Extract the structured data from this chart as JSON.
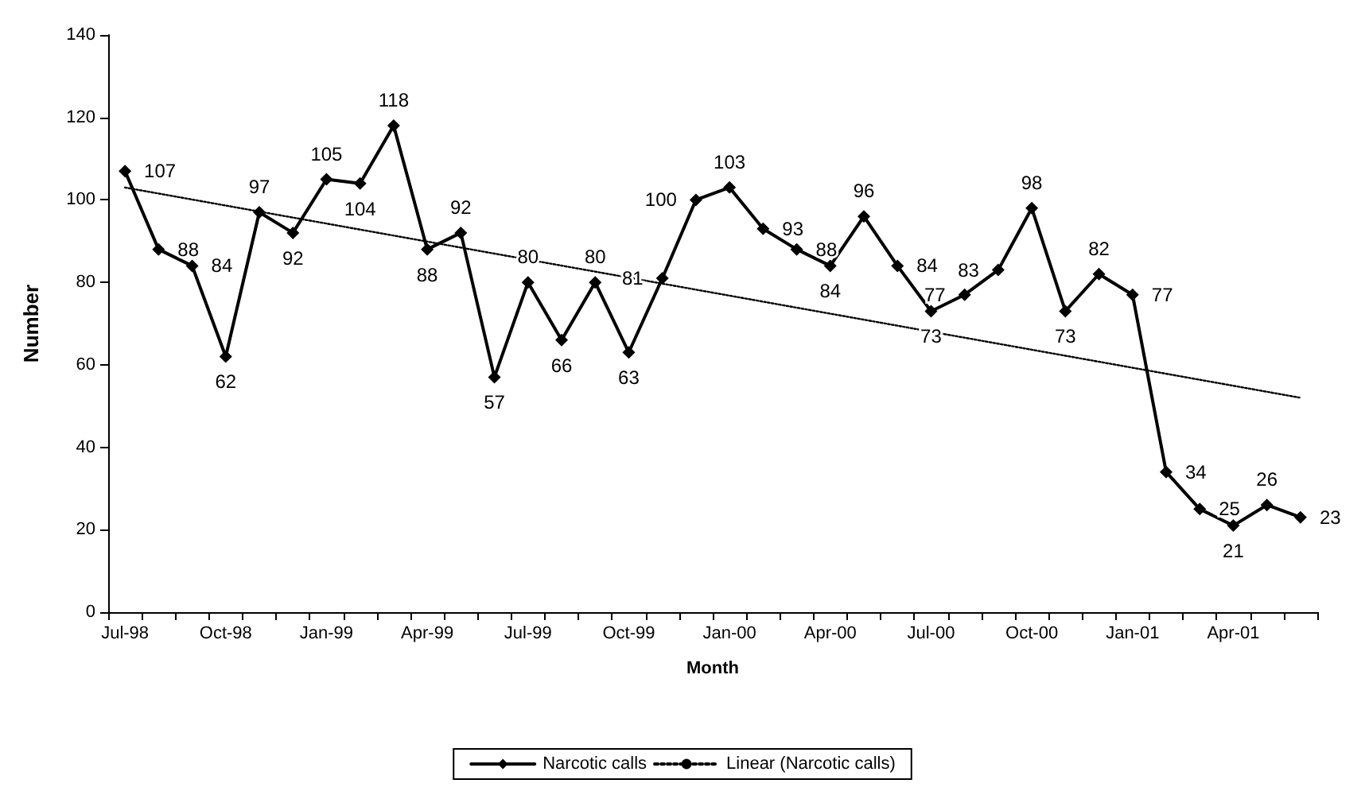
{
  "chart_data": {
    "type": "line",
    "xlabel": "Month",
    "ylabel": "Number",
    "categories": [
      "Jul-98",
      null,
      null,
      "Oct-98",
      null,
      null,
      "Jan-99",
      null,
      null,
      "Apr-99",
      null,
      null,
      "Jul-99",
      null,
      null,
      "Oct-99",
      null,
      null,
      "Jan-00",
      null,
      null,
      "Apr-00",
      null,
      null,
      "Jul-00",
      null,
      null,
      "Oct-00",
      null,
      null,
      "Jan-01",
      null,
      null,
      "Apr-01",
      null,
      null
    ],
    "series": [
      {
        "name": "Narcotic calls",
        "color": "#000000",
        "marker": "diamond",
        "line_style": "solid",
        "data_labels": true,
        "values": [
          107,
          88,
          84,
          62,
          97,
          92,
          105,
          104,
          118,
          88,
          92,
          57,
          80,
          66,
          80,
          63,
          81,
          100,
          103,
          93,
          88,
          84,
          96,
          84,
          73,
          77,
          83,
          98,
          73,
          82,
          77,
          34,
          25,
          21,
          26,
          23
        ]
      },
      {
        "name": "Linear (Narcotic calls)",
        "color": "#000000",
        "marker": "none",
        "line_style": "dotted",
        "values": [
          103,
          null,
          null,
          null,
          null,
          null,
          null,
          null,
          null,
          null,
          null,
          null,
          null,
          null,
          null,
          null,
          null,
          null,
          null,
          null,
          null,
          null,
          null,
          null,
          null,
          null,
          null,
          null,
          null,
          null,
          null,
          null,
          null,
          null,
          null,
          52
        ]
      }
    ],
    "ylim": [
      0,
      140
    ],
    "yticks": [
      0,
      20,
      40,
      60,
      80,
      100,
      120,
      140
    ],
    "grid": false,
    "legend": "bottom"
  }
}
